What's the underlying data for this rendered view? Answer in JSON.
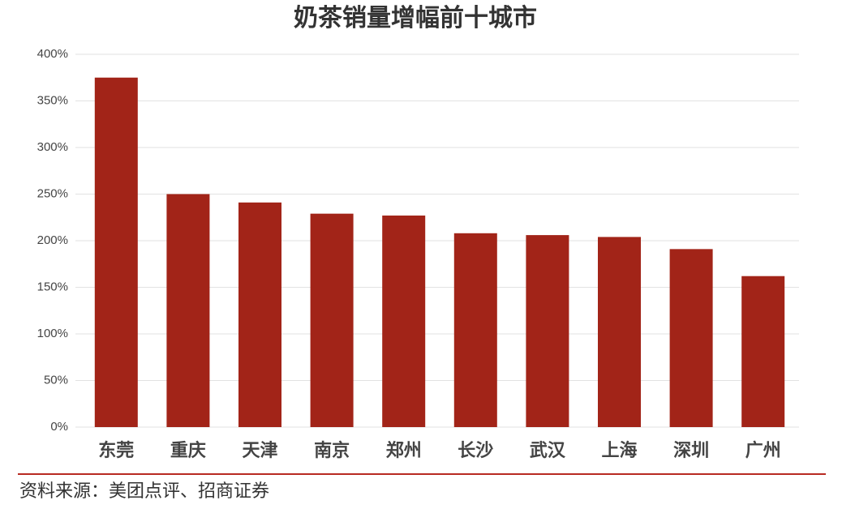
{
  "chart_data": {
    "type": "bar",
    "title": "奶茶销量增幅前十城市",
    "categories": [
      "东莞",
      "重庆",
      "天津",
      "南京",
      "郑州",
      "长沙",
      "武汉",
      "上海",
      "深圳",
      "广州"
    ],
    "values": [
      375,
      250,
      241,
      229,
      227,
      208,
      206,
      204,
      191,
      162
    ],
    "color": "#a22418",
    "ylim": [
      0,
      400
    ],
    "yticks": [
      {
        "value": 0,
        "label": "0%"
      },
      {
        "value": 50,
        "label": "50%"
      },
      {
        "value": 100,
        "label": "100%"
      },
      {
        "value": 150,
        "label": "150%"
      },
      {
        "value": 200,
        "label": "200%"
      },
      {
        "value": 250,
        "label": "250%"
      },
      {
        "value": 300,
        "label": "300%"
      },
      {
        "value": 350,
        "label": "350%"
      },
      {
        "value": 400,
        "label": "400%"
      }
    ],
    "grid": true,
    "source": "资料来源：美团点评、招商证券"
  }
}
